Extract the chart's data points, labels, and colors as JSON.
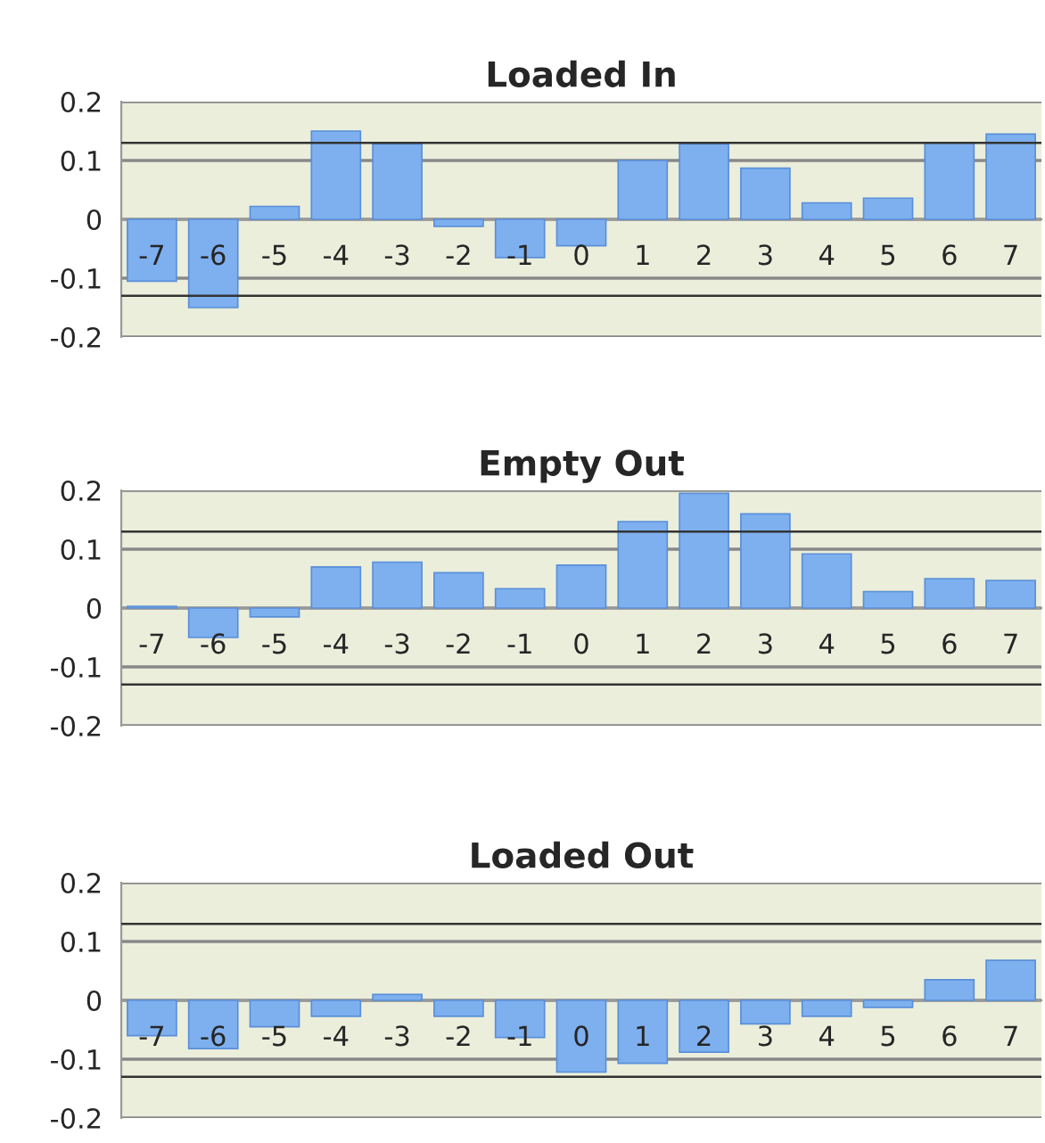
{
  "chart_data": [
    {
      "type": "bar",
      "title": "Loaded In",
      "categories": [
        "-7",
        "-6",
        "-5",
        "-4",
        "-3",
        "-2",
        "-1",
        "0",
        "1",
        "2",
        "3",
        "4",
        "5",
        "6",
        "7"
      ],
      "color": "#7eb0f0",
      "values": [
        -0.105,
        -0.15,
        0.022,
        0.15,
        0.128,
        -0.012,
        -0.065,
        -0.045,
        0.1,
        0.128,
        0.087,
        0.028,
        0.036,
        0.13,
        0.145
      ],
      "ylim": [
        -0.2,
        0.2
      ],
      "yticks": [
        -0.2,
        -0.1,
        0,
        0.1,
        0.2
      ],
      "grid": "y",
      "ref_lines": [
        {
          "axis": "y",
          "value": 0.13,
          "color": "#333333"
        },
        {
          "axis": "y",
          "value": -0.13,
          "color": "#333333"
        }
      ]
    },
    {
      "type": "bar",
      "title": "Empty Out",
      "categories": [
        "-7",
        "-6",
        "-5",
        "-4",
        "-3",
        "-2",
        "-1",
        "0",
        "1",
        "2",
        "3",
        "4",
        "5",
        "6",
        "7"
      ],
      "color": "#7eb0f0",
      "values": [
        0.003,
        -0.05,
        -0.015,
        0.07,
        0.078,
        0.06,
        0.033,
        0.073,
        0.147,
        0.195,
        0.16,
        0.092,
        0.028,
        0.05,
        0.047
      ],
      "ylim": [
        -0.2,
        0.2
      ],
      "yticks": [
        -0.2,
        -0.1,
        0,
        0.1,
        0.2
      ],
      "grid": "y",
      "ref_lines": [
        {
          "axis": "y",
          "value": 0.13,
          "color": "#333333"
        },
        {
          "axis": "y",
          "value": -0.13,
          "color": "#333333"
        }
      ]
    },
    {
      "type": "bar",
      "title": "Loaded Out",
      "categories": [
        "-7",
        "-6",
        "-5",
        "-4",
        "-3",
        "-2",
        "-1",
        "0",
        "1",
        "2",
        "3",
        "4",
        "5",
        "6",
        "7"
      ],
      "color": "#7eb0f0",
      "values": [
        -0.06,
        -0.082,
        -0.045,
        -0.027,
        0.01,
        -0.027,
        -0.063,
        -0.122,
        -0.107,
        -0.088,
        -0.04,
        -0.027,
        -0.012,
        0.035,
        0.068
      ],
      "ylim": [
        -0.2,
        0.2
      ],
      "yticks": [
        -0.2,
        -0.1,
        0,
        0.1,
        0.2
      ],
      "grid": "y",
      "ref_lines": [
        {
          "axis": "y",
          "value": 0.13,
          "color": "#333333"
        },
        {
          "axis": "y",
          "value": -0.13,
          "color": "#333333"
        }
      ]
    }
  ]
}
